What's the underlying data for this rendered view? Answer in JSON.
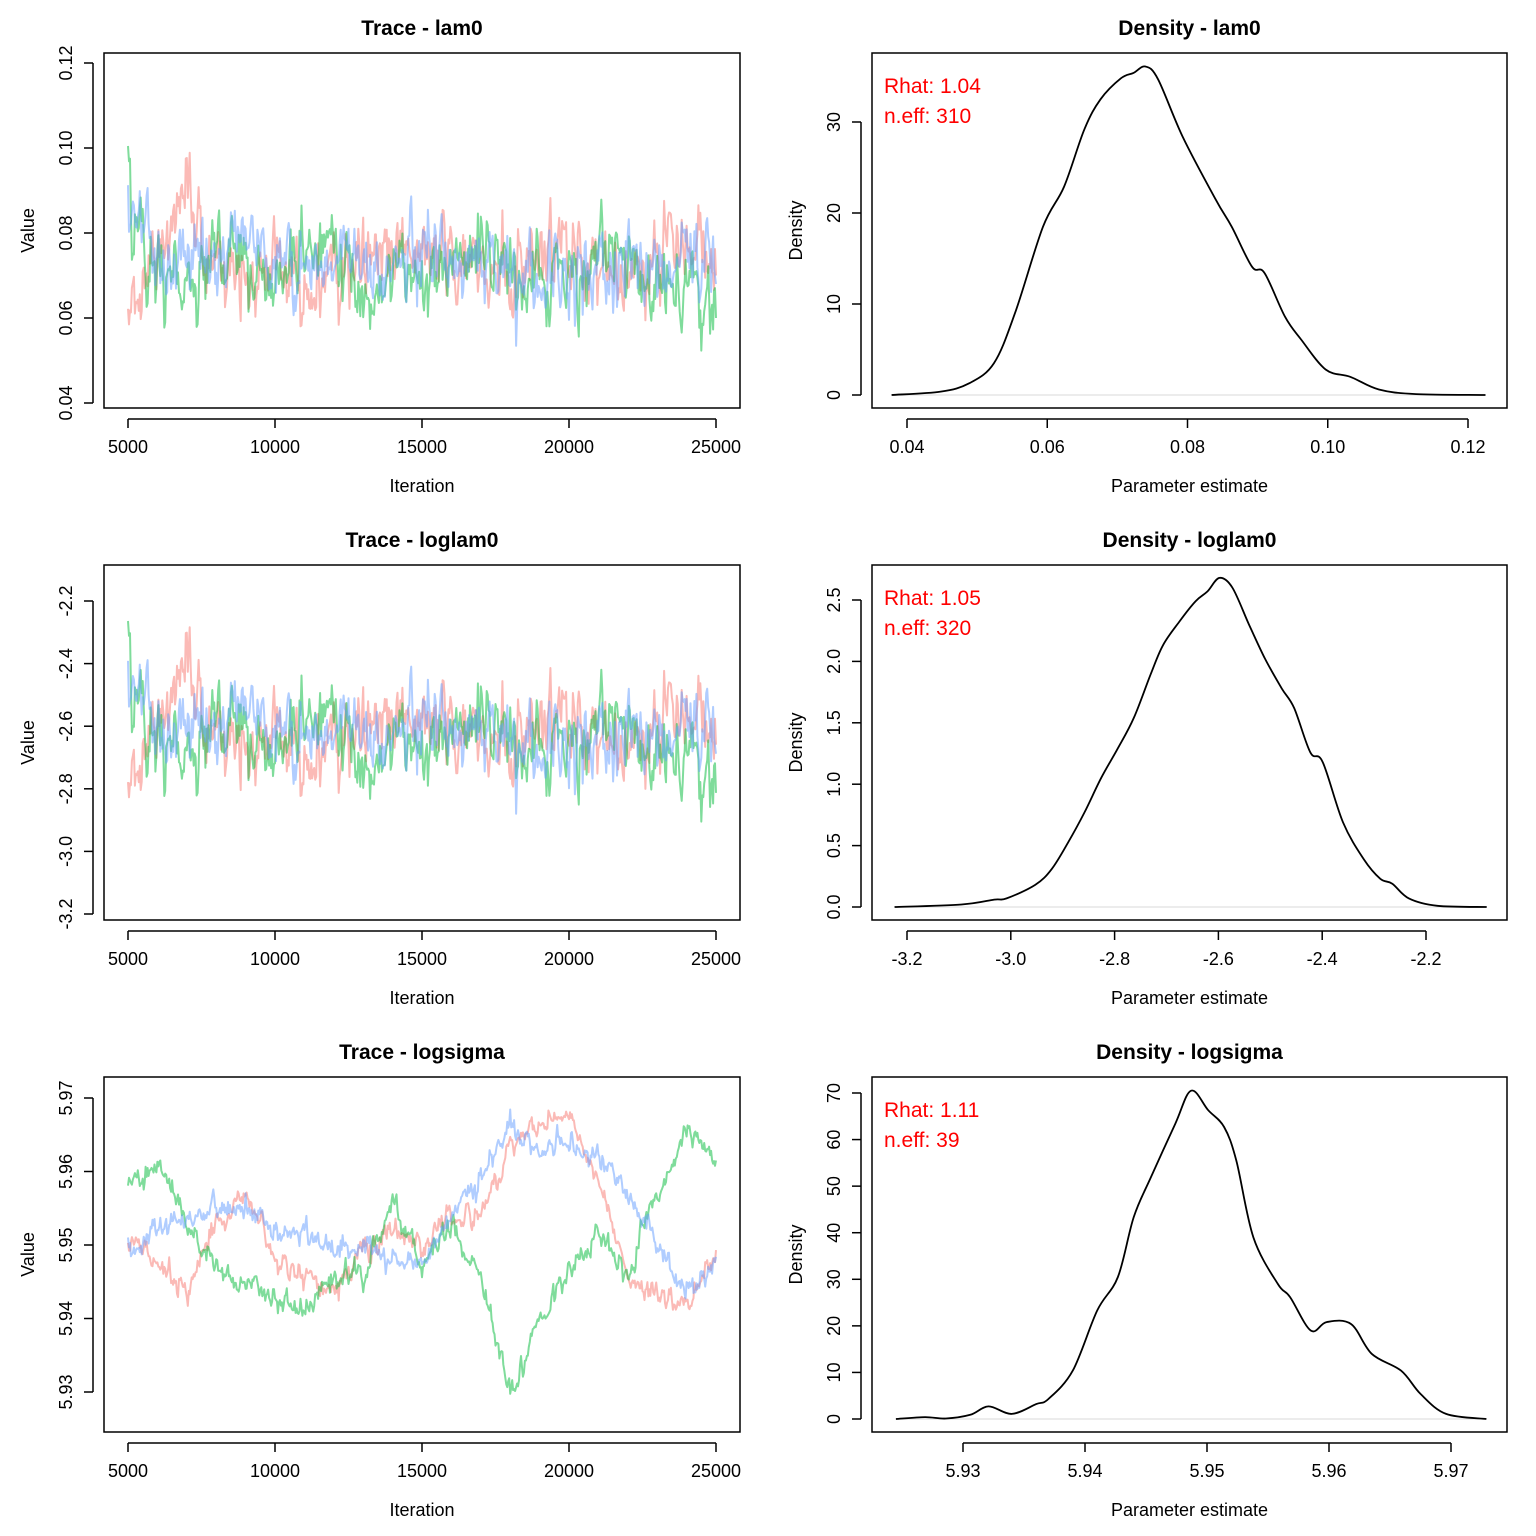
{
  "chart_data": [
    {
      "type": "line",
      "title": "Trace - lam0",
      "xlabel": "Iteration",
      "ylabel": "Value",
      "x_ticks": [
        "5000",
        "10000",
        "15000",
        "20000",
        "25000"
      ],
      "y_ticks": [
        "0.04",
        "0.06",
        "0.08",
        "0.10",
        "0.12"
      ],
      "x": [
        5000,
        6000,
        7000,
        8000,
        9000,
        10000,
        11000,
        12000,
        13000,
        14000,
        15000,
        16000,
        17000,
        18000,
        19000,
        20000,
        21000,
        22000,
        23000,
        24000,
        25000
      ],
      "series": [
        {
          "color": "#F8766D",
          "values": [
            0.062,
            0.074,
            0.088,
            0.07,
            0.068,
            0.072,
            0.066,
            0.07,
            0.075,
            0.078,
            0.072,
            0.08,
            0.07,
            0.068,
            0.076,
            0.074,
            0.07,
            0.066,
            0.075,
            0.08,
            0.07
          ]
        },
        {
          "color": "#00BA38",
          "values": [
            0.088,
            0.07,
            0.068,
            0.078,
            0.072,
            0.066,
            0.075,
            0.08,
            0.065,
            0.072,
            0.068,
            0.07,
            0.078,
            0.074,
            0.066,
            0.07,
            0.072,
            0.074,
            0.068,
            0.07,
            0.06
          ]
        },
        {
          "color": "#619CFF",
          "values": [
            0.09,
            0.072,
            0.076,
            0.07,
            0.08,
            0.074,
            0.068,
            0.078,
            0.072,
            0.07,
            0.076,
            0.07,
            0.074,
            0.072,
            0.066,
            0.07,
            0.068,
            0.072,
            0.07,
            0.074,
            0.068
          ]
        }
      ]
    },
    {
      "type": "line",
      "title": "Density - lam0",
      "xlabel": "Parameter estimate",
      "ylabel": "Density",
      "x_ticks": [
        "0.04",
        "0.06",
        "0.08",
        "0.10",
        "0.12"
      ],
      "y_ticks": [
        "0",
        "10",
        "20",
        "30"
      ],
      "annotations": [
        "Rhat: 1.04",
        "n.eff: 310"
      ],
      "annotation_color": "#FF0000",
      "x": [
        0.0378,
        0.0448,
        0.0489,
        0.0524,
        0.0554,
        0.0594,
        0.0624,
        0.0653,
        0.0676,
        0.0705,
        0.0723,
        0.074,
        0.0758,
        0.0793,
        0.084,
        0.0863,
        0.0892,
        0.091,
        0.0939,
        0.0962,
        0.0997,
        0.1032,
        0.1073,
        0.1126,
        0.1225
      ],
      "y": [
        0,
        0.37,
        1.3,
        3.5,
        9.0,
        18.5,
        22.9,
        29.2,
        32.5,
        34.8,
        35.4,
        36.1,
        34.7,
        28.4,
        21.5,
        18.5,
        14.1,
        13.4,
        8.6,
        6.1,
        2.8,
        2.0,
        0.6,
        0.1,
        0
      ]
    },
    {
      "type": "line",
      "title": "Trace - loglam0",
      "xlabel": "Iteration",
      "ylabel": "Value",
      "x_ticks": [
        "5000",
        "10000",
        "15000",
        "20000",
        "25000"
      ],
      "y_ticks": [
        "-3.2",
        "-3.0",
        "-2.8",
        "-2.6",
        "-2.4",
        "-2.2"
      ],
      "x": [
        5000,
        6000,
        7000,
        8000,
        9000,
        10000,
        11000,
        12000,
        13000,
        14000,
        15000,
        16000,
        17000,
        18000,
        19000,
        20000,
        21000,
        22000,
        23000,
        24000,
        25000
      ],
      "series": [
        {
          "color": "#F8766D",
          "values": [
            -2.781,
            -2.604,
            -2.43,
            -2.659,
            -2.688,
            -2.631,
            -2.718,
            -2.659,
            -2.59,
            -2.551,
            -2.631,
            -2.526,
            -2.659,
            -2.688,
            -2.577,
            -2.604,
            -2.659,
            -2.718,
            -2.59,
            -2.526,
            -2.659
          ]
        },
        {
          "color": "#00BA38",
          "values": [
            -2.43,
            -2.659,
            -2.688,
            -2.551,
            -2.631,
            -2.718,
            -2.59,
            -2.526,
            -2.733,
            -2.631,
            -2.688,
            -2.659,
            -2.551,
            -2.604,
            -2.718,
            -2.659,
            -2.631,
            -2.604,
            -2.688,
            -2.659,
            -2.813
          ]
        },
        {
          "color": "#619CFF",
          "values": [
            -2.408,
            -2.631,
            -2.577,
            -2.659,
            -2.526,
            -2.604,
            -2.688,
            -2.551,
            -2.631,
            -2.659,
            -2.577,
            -2.659,
            -2.604,
            -2.631,
            -2.718,
            -2.659,
            -2.688,
            -2.631,
            -2.659,
            -2.604,
            -2.688
          ]
        }
      ]
    },
    {
      "type": "line",
      "title": "Density - loglam0",
      "xlabel": "Parameter estimate",
      "ylabel": "Density",
      "x_ticks": [
        "-3.2",
        "-3.0",
        "-2.8",
        "-2.6",
        "-2.4",
        "-2.2"
      ],
      "y_ticks": [
        "0.0",
        "0.5",
        "1.0",
        "1.5",
        "2.0",
        "2.5"
      ],
      "annotations": [
        "Rhat: 1.05",
        "n.eff: 320"
      ],
      "annotation_color": "#FF0000",
      "x": [
        -3.224,
        -3.095,
        -3.032,
        -3.008,
        -2.953,
        -2.921,
        -2.889,
        -2.858,
        -2.826,
        -2.794,
        -2.763,
        -2.731,
        -2.707,
        -2.676,
        -2.644,
        -2.621,
        -2.598,
        -2.573,
        -2.541,
        -2.51,
        -2.478,
        -2.454,
        -2.423,
        -2.399,
        -2.36,
        -2.32,
        -2.288,
        -2.265,
        -2.233,
        -2.178,
        -2.083
      ],
      "y": [
        0,
        0.02,
        0.06,
        0.07,
        0.18,
        0.31,
        0.53,
        0.77,
        1.05,
        1.29,
        1.54,
        1.89,
        2.13,
        2.32,
        2.49,
        2.57,
        2.68,
        2.6,
        2.3,
        2.02,
        1.78,
        1.62,
        1.26,
        1.18,
        0.69,
        0.39,
        0.23,
        0.19,
        0.07,
        0.01,
        0
      ]
    },
    {
      "type": "line",
      "title": "Trace - logsigma",
      "xlabel": "Iteration",
      "ylabel": "Value",
      "x_ticks": [
        "5000",
        "10000",
        "15000",
        "20000",
        "25000"
      ],
      "y_ticks": [
        "5.93",
        "5.94",
        "5.95",
        "5.96",
        "5.97"
      ],
      "x": [
        5000,
        6000,
        7000,
        8000,
        9000,
        10000,
        11000,
        12000,
        13000,
        14000,
        15000,
        16000,
        17000,
        18000,
        19000,
        20000,
        21000,
        22000,
        23000,
        24000,
        25000
      ],
      "series": [
        {
          "color": "#F8766D",
          "values": [
            5.952,
            5.9475,
            5.9434,
            5.9524,
            5.957,
            5.9484,
            5.9457,
            5.9434,
            5.9493,
            5.9524,
            5.9502,
            5.9538,
            5.9538,
            5.9638,
            5.966,
            5.9683,
            5.9592,
            5.9457,
            5.9434,
            5.9411,
            5.9493
          ]
        },
        {
          "color": "#00BA38",
          "values": [
            5.9579,
            5.961,
            5.9524,
            5.9475,
            5.9448,
            5.9434,
            5.9411,
            5.9457,
            5.9457,
            5.957,
            5.9466,
            5.9524,
            5.9457,
            5.9298,
            5.9402,
            5.9457,
            5.952,
            5.9457,
            5.957,
            5.966,
            5.9615
          ]
        },
        {
          "color": "#619CFF",
          "values": [
            5.9493,
            5.952,
            5.9534,
            5.9556,
            5.9547,
            5.9524,
            5.9511,
            5.9493,
            5.9493,
            5.9484,
            5.9475,
            5.9547,
            5.9592,
            5.966,
            5.9629,
            5.9638,
            5.9615,
            5.957,
            5.9502,
            5.9434,
            5.9484
          ]
        }
      ]
    },
    {
      "type": "line",
      "title": "Density - logsigma",
      "xlabel": "Parameter estimate",
      "ylabel": "Density",
      "x_ticks": [
        "5.93",
        "5.94",
        "5.95",
        "5.96",
        "5.97"
      ],
      "y_ticks": [
        "0",
        "10",
        "20",
        "30",
        "40",
        "50",
        "60",
        "70"
      ],
      "annotations": [
        "Rhat: 1.11",
        "n.eff: 39"
      ],
      "annotation_color": "#FF0000",
      "x": [
        5.9245,
        5.9269,
        5.9286,
        5.9306,
        5.9321,
        5.934,
        5.936,
        5.937,
        5.939,
        5.941,
        5.9427,
        5.944,
        5.9454,
        5.9474,
        5.9487,
        5.9501,
        5.9514,
        5.9524,
        5.9538,
        5.9558,
        5.9568,
        5.9585,
        5.9598,
        5.9618,
        5.9635,
        5.9659,
        5.9675,
        5.9696,
        5.9729
      ],
      "y": [
        0,
        0.4,
        0.1,
        0.9,
        2.7,
        1.1,
        3.2,
        4.3,
        10.4,
        23.3,
        30.5,
        43.4,
        51.9,
        63.4,
        70.5,
        66.3,
        62.7,
        55.5,
        39.0,
        29.0,
        26.2,
        19.0,
        20.8,
        20.4,
        14.0,
        10.4,
        5.4,
        1.1,
        0
      ]
    }
  ]
}
